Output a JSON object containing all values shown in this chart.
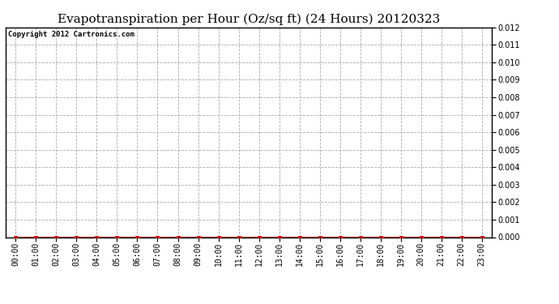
{
  "title": "Evapotranspiration per Hour (Oz/sq ft) (24 Hours) 20120323",
  "copyright_text": "Copyright 2012 Cartronics.com",
  "hours": [
    "00:00",
    "01:00",
    "02:00",
    "03:00",
    "04:00",
    "05:00",
    "06:00",
    "07:00",
    "08:00",
    "09:00",
    "10:00",
    "11:00",
    "12:00",
    "13:00",
    "14:00",
    "15:00",
    "16:00",
    "17:00",
    "18:00",
    "19:00",
    "20:00",
    "21:00",
    "22:00",
    "23:00"
  ],
  "values": [
    0.0,
    0.0,
    0.0,
    0.0,
    0.0,
    0.0,
    0.0,
    0.0,
    0.0,
    0.0,
    0.0,
    0.0,
    0.0,
    0.0,
    0.0,
    0.0,
    0.0,
    0.0,
    0.0,
    0.0,
    0.0,
    0.0,
    0.0,
    0.0
  ],
  "ylim": [
    0.0,
    0.012
  ],
  "ytick_step": 0.001,
  "line_color": "#cc0000",
  "marker": "s",
  "marker_color": "#cc0000",
  "marker_size": 3,
  "grid_color": "#aaaaaa",
  "grid_style": "--",
  "bg_color": "#ffffff",
  "plot_bg_color": "#ffffff",
  "title_fontsize": 11,
  "copyright_fontsize": 6.5,
  "tick_fontsize": 7,
  "ytick_fontsize": 7,
  "border_color": "#000000"
}
